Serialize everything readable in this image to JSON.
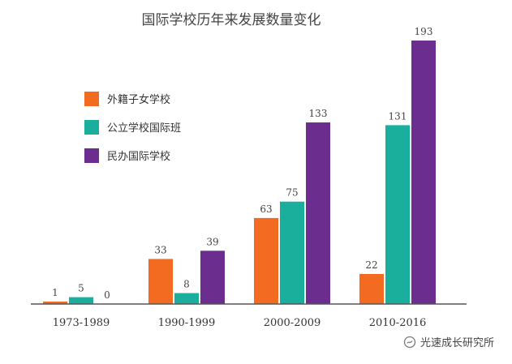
{
  "chart_data": {
    "type": "bar",
    "title": "国际学校历年来发展数量变化",
    "categories": [
      "1973-1989",
      "1990-1999",
      "2000-2009",
      "2010-2016"
    ],
    "series": [
      {
        "name": "外籍子女学校",
        "color": "#f26b21",
        "values": [
          1,
          33,
          63,
          22
        ]
      },
      {
        "name": "公立学校国际班",
        "color": "#1aaf9c",
        "values": [
          5,
          8,
          75,
          131
        ]
      },
      {
        "name": "民办国际学校",
        "color": "#6b2d8e",
        "values": [
          0,
          39,
          133,
          193
        ]
      }
    ],
    "ylim": [
      0,
      193
    ],
    "legend_position": "top-left",
    "grid": false,
    "xlabel": "",
    "ylabel": ""
  },
  "watermark": {
    "icon": "wechat-official-account-icon",
    "text": "光速成长研究所"
  }
}
